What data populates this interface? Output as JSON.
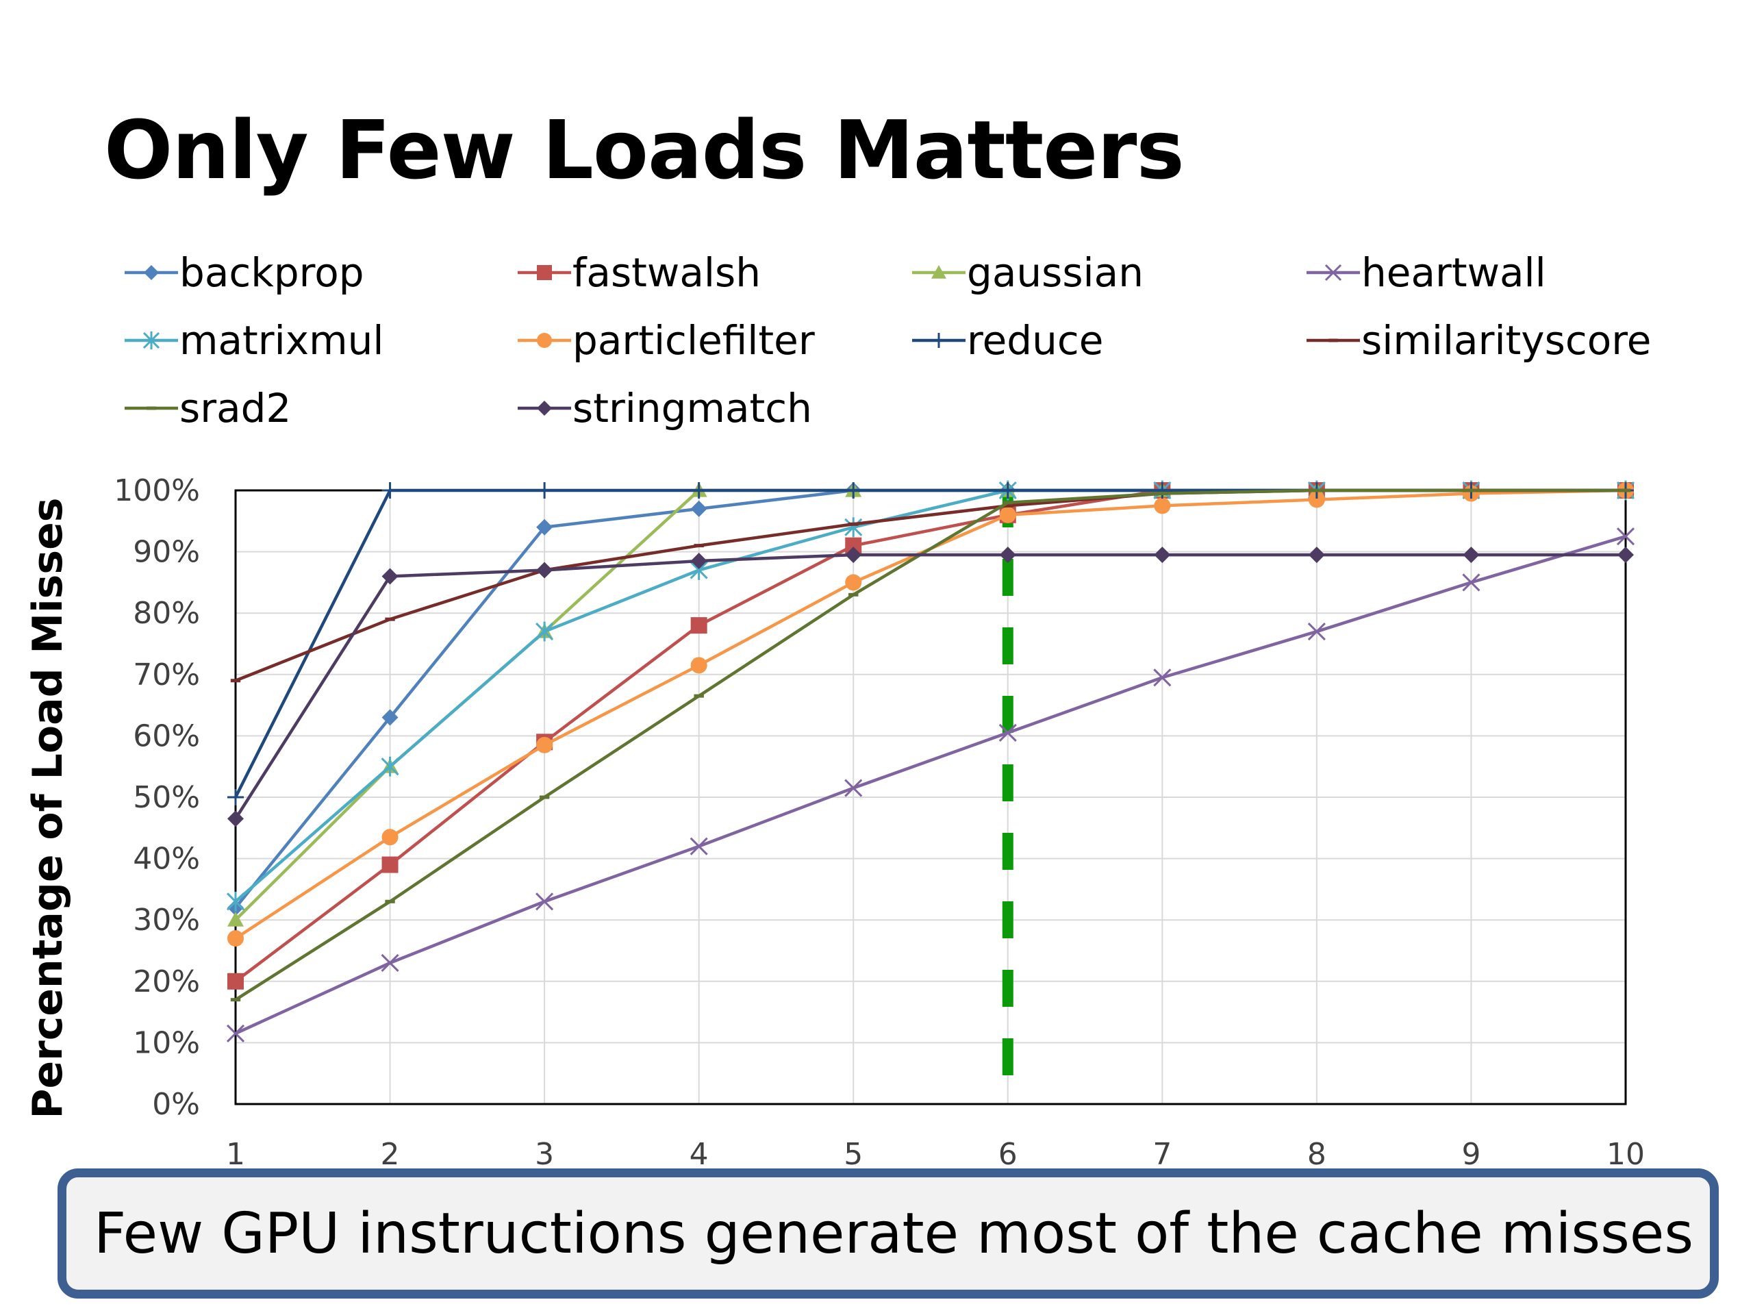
{
  "slide": {
    "title": "Only Few Loads Matters",
    "callout": "Few GPU instructions generate most of the cache misses"
  },
  "chart_data": {
    "type": "line",
    "title": "",
    "xlabel": "",
    "ylabel": "Percentage of Load Misses",
    "x": [
      1,
      2,
      3,
      4,
      5,
      6,
      7,
      8,
      9,
      10
    ],
    "xlim": [
      1,
      10
    ],
    "ylim": [
      0,
      100
    ],
    "y_ticks": [
      "0%",
      "10%",
      "20%",
      "30%",
      "40%",
      "50%",
      "60%",
      "70%",
      "80%",
      "90%",
      "100%"
    ],
    "grid": true,
    "legend_position": "top",
    "annotation": {
      "type": "vertical-dashed-line",
      "x": 6,
      "color": "#0a9a0a"
    },
    "series": [
      {
        "name": "backprop",
        "color": "#4f81bd",
        "marker": "diamond",
        "values": [
          32,
          63,
          94,
          97,
          100,
          100,
          100,
          100,
          100,
          100
        ]
      },
      {
        "name": "fastwalsh",
        "color": "#c0504d",
        "marker": "square",
        "values": [
          20,
          39,
          59,
          78,
          91,
          96,
          100,
          100,
          100,
          100
        ]
      },
      {
        "name": "gaussian",
        "color": "#9bbb59",
        "marker": "triangle",
        "values": [
          30,
          55,
          77,
          100,
          100,
          100,
          100,
          100,
          100,
          100
        ]
      },
      {
        "name": "heartwall",
        "color": "#8064a2",
        "marker": "x",
        "values": [
          11.5,
          23,
          33,
          42,
          51.5,
          60.5,
          69.5,
          77,
          85,
          92.5
        ]
      },
      {
        "name": "matrixmul",
        "color": "#4bacc6",
        "marker": "star",
        "values": [
          33,
          55,
          77,
          87,
          94,
          100,
          100,
          100,
          100,
          100
        ]
      },
      {
        "name": "particlefilter",
        "color": "#f79646",
        "marker": "circle",
        "values": [
          27,
          43.5,
          58.5,
          71.5,
          85,
          96,
          97.5,
          98.5,
          99.5,
          100
        ]
      },
      {
        "name": "reduce",
        "color": "#1f497d",
        "marker": "plus",
        "values": [
          50,
          100,
          100,
          100,
          100,
          100,
          100,
          100,
          100,
          100
        ]
      },
      {
        "name": "similarityscore",
        "color": "#772c2a",
        "marker": "dash",
        "values": [
          69,
          79,
          87,
          91,
          94.5,
          97.5,
          99.5,
          100,
          100,
          100
        ]
      },
      {
        "name": "srad2",
        "color": "#5f7530",
        "marker": "dash",
        "values": [
          17,
          33,
          50,
          66.5,
          83,
          98,
          99.5,
          100,
          100,
          100
        ]
      },
      {
        "name": "stringmatch",
        "color": "#4d3b62",
        "marker": "diamond",
        "values": [
          46.5,
          86,
          87,
          88.5,
          89.5,
          89.5,
          89.5,
          89.5,
          89.5,
          89.5
        ]
      }
    ]
  }
}
